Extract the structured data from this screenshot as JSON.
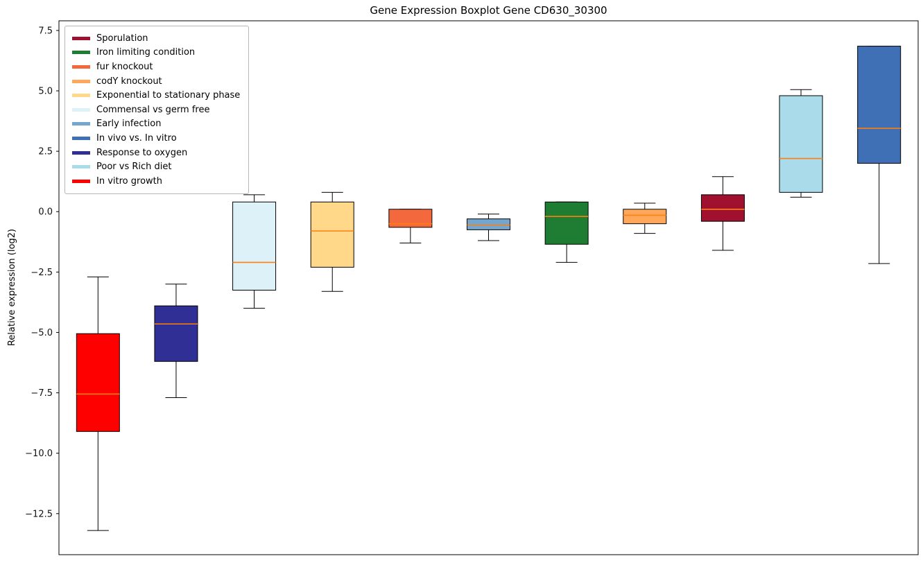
{
  "chart_data": {
    "type": "boxplot",
    "title": "Gene Expression Boxplot Gene CD630_30300",
    "xlabel": "",
    "ylabel": "Relative expression (log2)",
    "ylim": [
      -14.2,
      7.9
    ],
    "yticks": [
      7.5,
      5.0,
      2.5,
      0.0,
      -2.5,
      -5.0,
      -7.5,
      -10.0,
      -12.5
    ],
    "grid": false,
    "legend_position": "upper-left",
    "median_color": "#ff7f0e",
    "box_edge_color": "#000000",
    "series": [
      {
        "name": "In vitro growth",
        "color": "#ff0000",
        "whisker_low": -13.2,
        "q1": -9.1,
        "median": -7.55,
        "q3": -5.05,
        "whisker_high": -2.7
      },
      {
        "name": "Response to oxygen",
        "color": "#2f2f96",
        "whisker_low": -7.7,
        "q1": -6.2,
        "median": -4.65,
        "q3": -3.9,
        "whisker_high": -3.0
      },
      {
        "name": "Commensal vs germ free",
        "color": "#ddf1f8",
        "whisker_low": -4.0,
        "q1": -3.25,
        "median": -2.1,
        "q3": 0.4,
        "whisker_high": 0.7
      },
      {
        "name": "Exponential to stationary phase",
        "color": "#ffd88a",
        "whisker_low": -3.3,
        "q1": -2.3,
        "median": -0.8,
        "q3": 0.4,
        "whisker_high": 0.8
      },
      {
        "name": "fur knockout",
        "color": "#f4683e",
        "whisker_low": -1.3,
        "q1": -0.65,
        "median": -0.5,
        "q3": 0.1,
        "whisker_high": 0.1
      },
      {
        "name": "Early infection",
        "color": "#74a7cf",
        "whisker_low": -1.2,
        "q1": -0.75,
        "median": -0.55,
        "q3": -0.3,
        "whisker_high": -0.1
      },
      {
        "name": "Iron limiting condition",
        "color": "#1e7d32",
        "whisker_low": -2.1,
        "q1": -1.35,
        "median": -0.2,
        "q3": 0.4,
        "whisker_high": 0.4
      },
      {
        "name": "codY knockout",
        "color": "#ffa85c",
        "whisker_low": -0.9,
        "q1": -0.5,
        "median": -0.15,
        "q3": 0.1,
        "whisker_high": 0.35
      },
      {
        "name": "Sporulation",
        "color": "#a0102f",
        "whisker_low": -1.6,
        "q1": -0.4,
        "median": 0.1,
        "q3": 0.7,
        "whisker_high": 1.45
      },
      {
        "name": "Poor vs Rich diet",
        "color": "#aadbeb",
        "whisker_low": 0.6,
        "q1": 0.8,
        "median": 2.2,
        "q3": 4.8,
        "whisker_high": 5.05
      },
      {
        "name": "In vivo vs. In vitro",
        "color": "#3f6fb5",
        "whisker_low": -2.15,
        "q1": 2.0,
        "median": 3.45,
        "q3": 6.85,
        "whisker_high": 6.85
      }
    ],
    "legend": [
      {
        "label": "Sporulation",
        "color": "#a0102f"
      },
      {
        "label": "Iron limiting condition",
        "color": "#1e7d32"
      },
      {
        "label": "fur knockout",
        "color": "#f4683e"
      },
      {
        "label": "codY knockout",
        "color": "#ffa85c"
      },
      {
        "label": "Exponential to stationary phase",
        "color": "#ffd88a"
      },
      {
        "label": "Commensal vs germ free",
        "color": "#ddf1f8"
      },
      {
        "label": "Early infection",
        "color": "#74a7cf"
      },
      {
        "label": "In vivo vs. In vitro",
        "color": "#3f6fb5"
      },
      {
        "label": "Response to oxygen",
        "color": "#2f2f96"
      },
      {
        "label": "Poor vs Rich diet",
        "color": "#aadbeb"
      },
      {
        "label": "In vitro growth",
        "color": "#ff0000"
      }
    ]
  }
}
